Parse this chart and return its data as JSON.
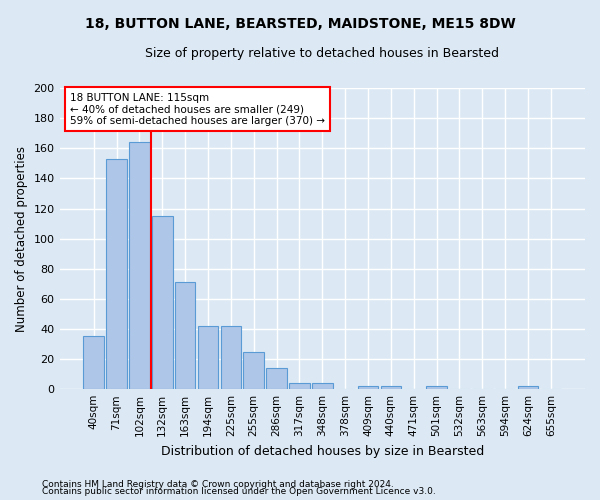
{
  "title1": "18, BUTTON LANE, BEARSTED, MAIDSTONE, ME15 8DW",
  "title2": "Size of property relative to detached houses in Bearsted",
  "xlabel": "Distribution of detached houses by size in Bearsted",
  "ylabel": "Number of detached properties",
  "categories": [
    "40sqm",
    "71sqm",
    "102sqm",
    "132sqm",
    "163sqm",
    "194sqm",
    "225sqm",
    "255sqm",
    "286sqm",
    "317sqm",
    "348sqm",
    "378sqm",
    "409sqm",
    "440sqm",
    "471sqm",
    "501sqm",
    "532sqm",
    "563sqm",
    "594sqm",
    "624sqm",
    "655sqm"
  ],
  "values": [
    35,
    153,
    164,
    115,
    71,
    42,
    42,
    25,
    14,
    4,
    4,
    0,
    2,
    2,
    0,
    2,
    0,
    0,
    0,
    2,
    0
  ],
  "bar_color": "#aec6e8",
  "bar_edge_color": "#5b9bd5",
  "annotation_text": "18 BUTTON LANE: 115sqm\n← 40% of detached houses are smaller (249)\n59% of semi-detached houses are larger (370) →",
  "annotation_box_color": "white",
  "annotation_box_edge_color": "red",
  "vline_color": "red",
  "vline_x_index": 2,
  "ylim": [
    0,
    200
  ],
  "yticks": [
    0,
    20,
    40,
    60,
    80,
    100,
    120,
    140,
    160,
    180,
    200
  ],
  "footnote1": "Contains HM Land Registry data © Crown copyright and database right 2024.",
  "footnote2": "Contains public sector information licensed under the Open Government Licence v3.0.",
  "background_color": "#dce9f5",
  "grid_color": "#ffffff"
}
